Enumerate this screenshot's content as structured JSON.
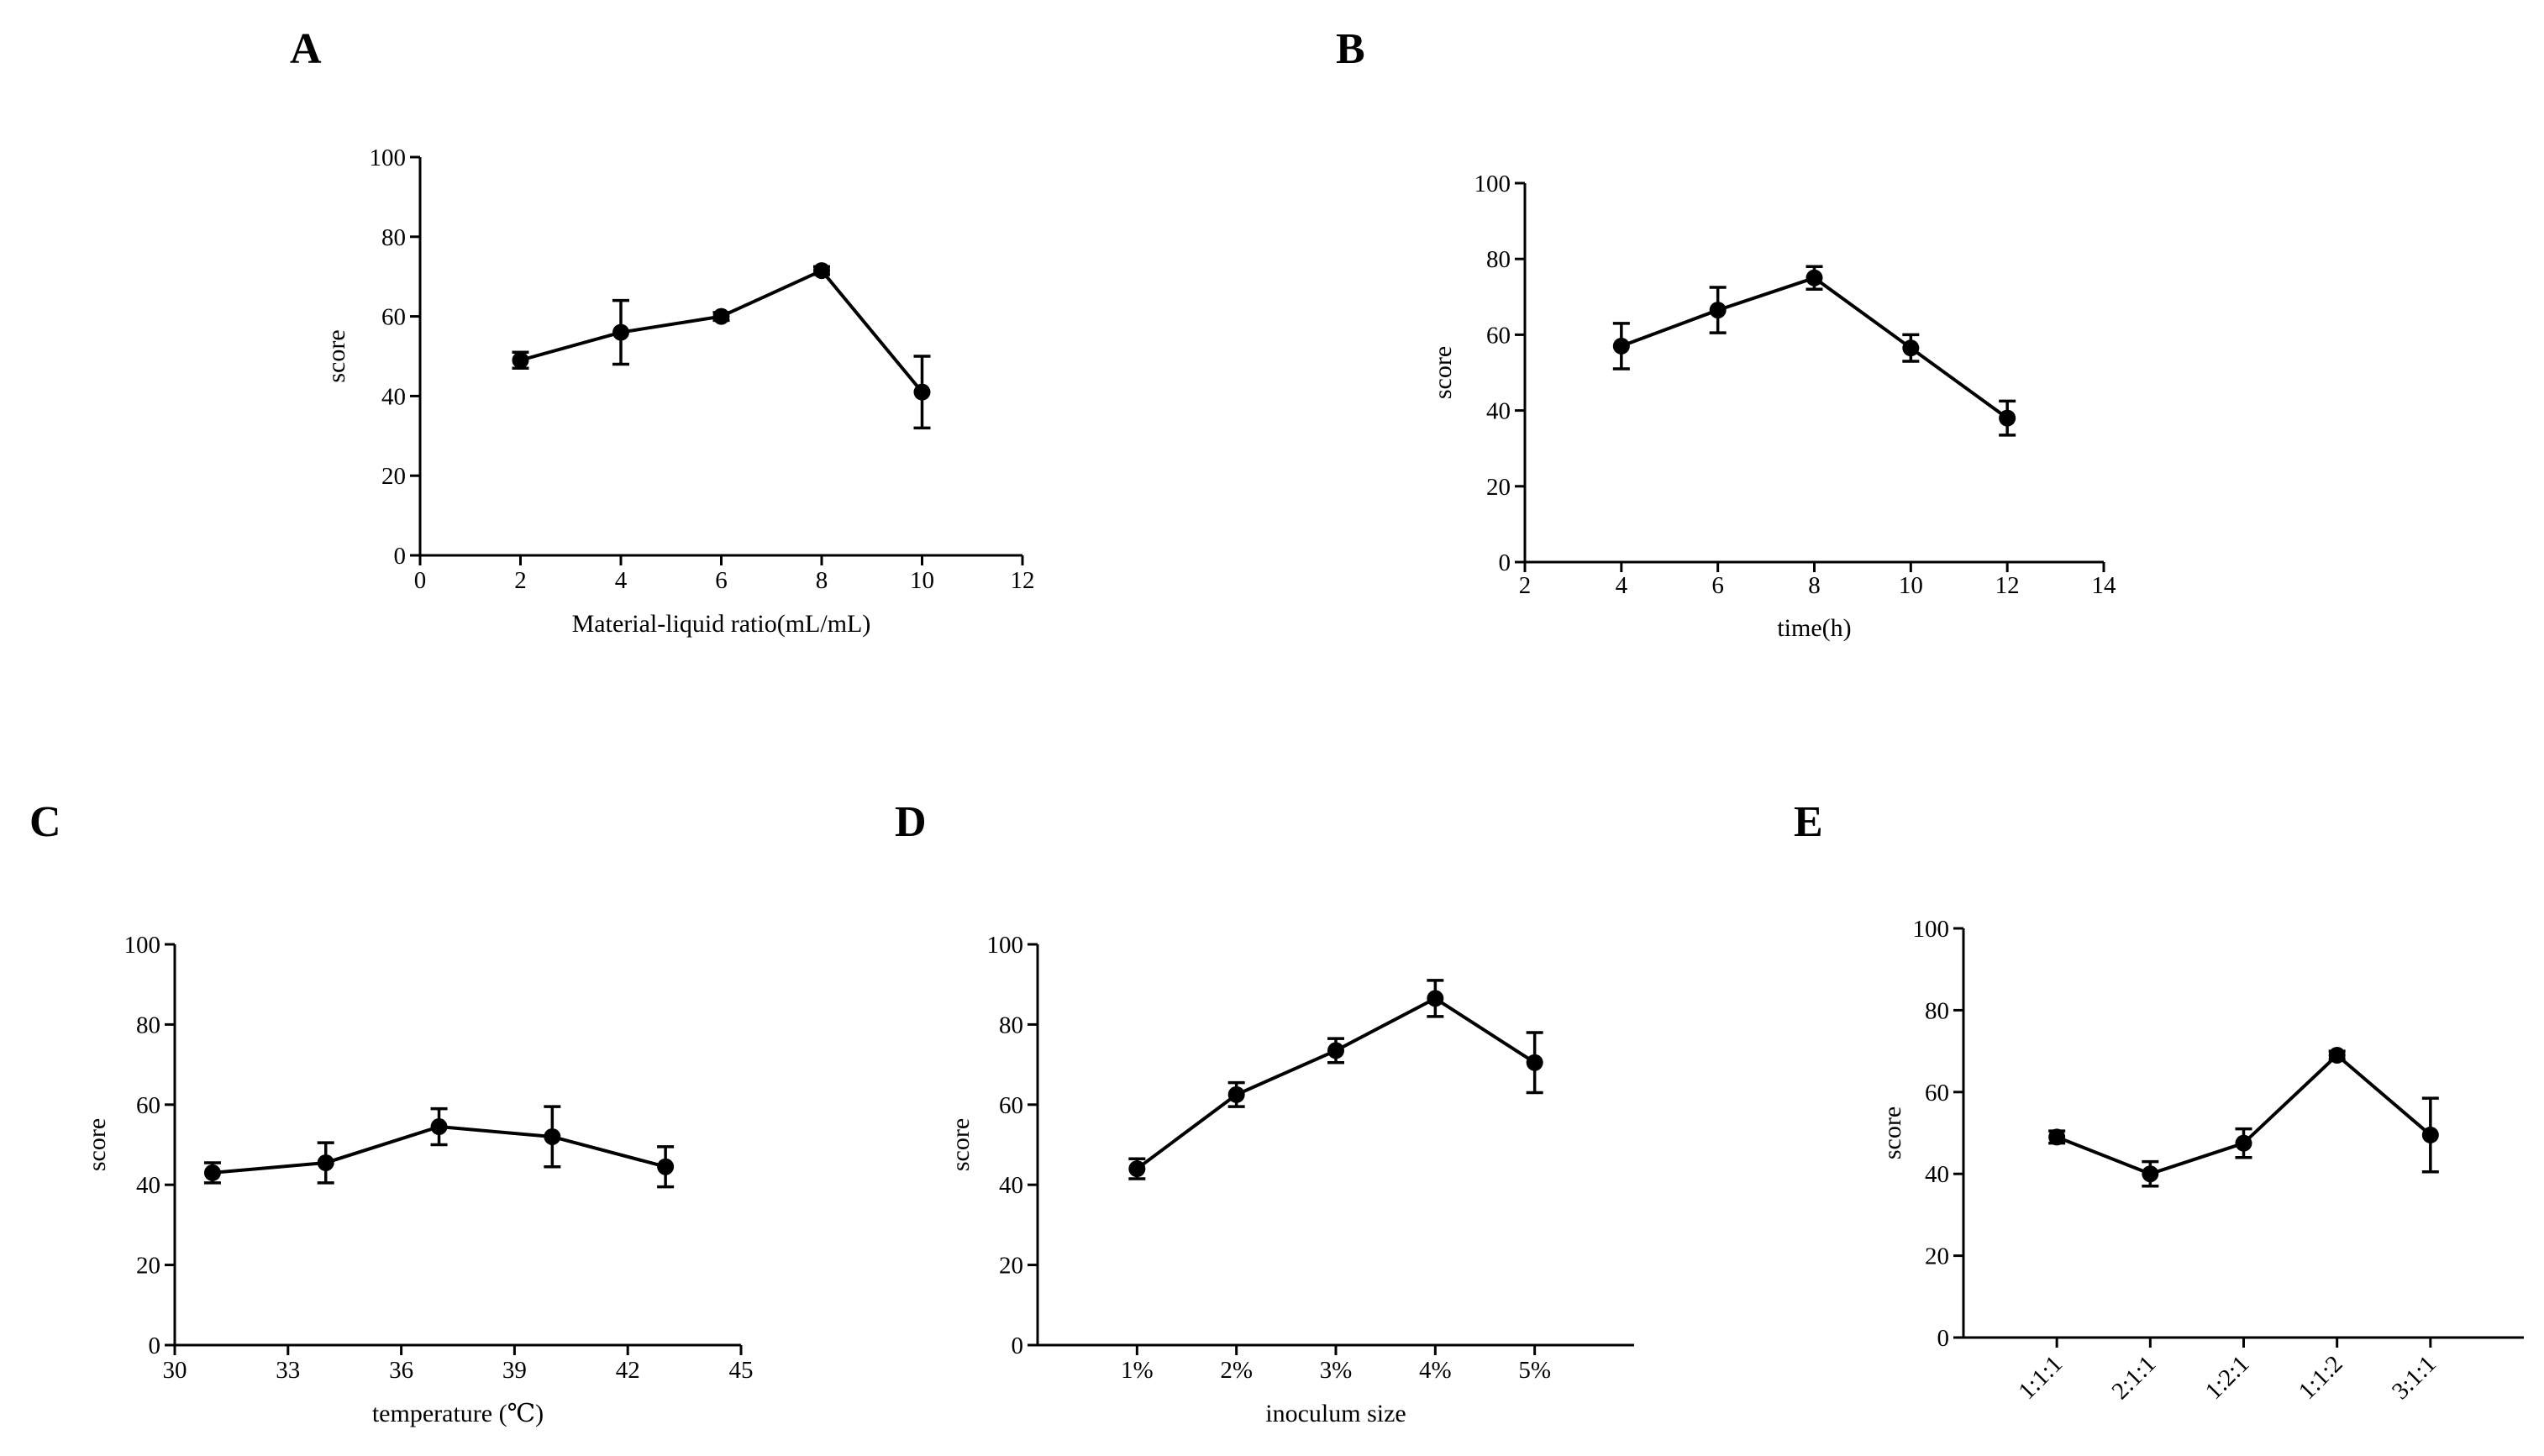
{
  "chart_data": [
    {
      "panel": "A",
      "type": "line",
      "title": "",
      "xlabel": "Material-liquid ratio(mL/mL)",
      "ylabel": "score",
      "xlim": [
        0,
        12
      ],
      "ylim": [
        0,
        100
      ],
      "xticks": [
        "0",
        "2",
        "4",
        "6",
        "8",
        "10",
        "12"
      ],
      "yticks": [
        "0",
        "20",
        "40",
        "60",
        "80",
        "100"
      ],
      "x": [
        2,
        4,
        6,
        8,
        10
      ],
      "values": [
        49,
        56,
        60,
        71.5,
        41
      ],
      "errors": [
        2,
        8,
        1,
        1,
        9
      ]
    },
    {
      "panel": "B",
      "type": "line",
      "title": "",
      "xlabel": "time(h)",
      "ylabel": "score",
      "xlim": [
        2,
        14
      ],
      "ylim": [
        0,
        100
      ],
      "xticks": [
        "2",
        "4",
        "6",
        "8",
        "10",
        "12",
        "14"
      ],
      "yticks": [
        "0",
        "20",
        "40",
        "60",
        "80",
        "100"
      ],
      "x": [
        4,
        6,
        8,
        10,
        12
      ],
      "values": [
        57,
        66.5,
        75,
        56.5,
        38
      ],
      "errors": [
        6,
        6,
        3,
        3.5,
        4.5
      ]
    },
    {
      "panel": "C",
      "type": "line",
      "title": "",
      "xlabel": "temperature (℃)",
      "ylabel": "score",
      "xlim": [
        30,
        45
      ],
      "ylim": [
        0,
        100
      ],
      "xticks": [
        "30",
        "33",
        "36",
        "39",
        "42",
        "45"
      ],
      "yticks": [
        "0",
        "20",
        "40",
        "60",
        "80",
        "100"
      ],
      "x": [
        31,
        34,
        37,
        40,
        43
      ],
      "values": [
        43,
        45.5,
        54.5,
        52,
        44.5
      ],
      "errors": [
        2.5,
        5,
        4.5,
        7.5,
        5
      ]
    },
    {
      "panel": "D",
      "type": "line",
      "title": "",
      "xlabel": "inoculum size",
      "ylabel": "score",
      "xlim": [
        0,
        6
      ],
      "ylim": [
        0,
        100
      ],
      "categories": [
        "1%",
        "2%",
        "3%",
        "4%",
        "5%"
      ],
      "yticks": [
        "0",
        "20",
        "40",
        "60",
        "80",
        "100"
      ],
      "x": [
        1,
        2,
        3,
        4,
        5
      ],
      "values": [
        44,
        62.5,
        73.5,
        86.5,
        70.5
      ],
      "errors": [
        2.5,
        3,
        3,
        4.5,
        7.5
      ]
    },
    {
      "panel": "E",
      "type": "line",
      "title": "",
      "xlabel": "",
      "ylabel": "score",
      "xlim": [
        0,
        6
      ],
      "ylim": [
        0,
        100
      ],
      "categories": [
        "1:1:1",
        "2:1:1",
        "1:2:1",
        "1:1:2",
        "3:1:1"
      ],
      "yticks": [
        "0",
        "20",
        "40",
        "60",
        "80",
        "100"
      ],
      "x": [
        1,
        2,
        3,
        4,
        5
      ],
      "values": [
        49,
        40,
        47.5,
        69,
        49.5
      ],
      "errors": [
        1.5,
        3,
        3.5,
        1,
        9
      ]
    }
  ]
}
